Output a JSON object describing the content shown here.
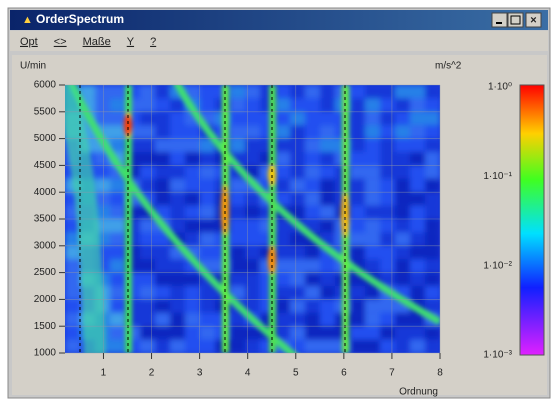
{
  "window": {
    "title": "OrderSpectrum",
    "menu": [
      "Opt",
      "<>",
      "Maße",
      "Y",
      "?"
    ]
  },
  "chart_data": {
    "type": "heatmap",
    "y_label": "U/min",
    "x_label": "Ordnung",
    "unit_label": "m/s^2",
    "xlim": [
      0.2,
      8
    ],
    "xticks": [
      1,
      2,
      3,
      4,
      5,
      6,
      7,
      8
    ],
    "ylim": [
      1000,
      6000
    ],
    "yticks": [
      1000,
      1500,
      2000,
      2500,
      3000,
      3500,
      4000,
      4500,
      5000,
      5500,
      6000
    ],
    "colorbar_labels": [
      "1·10⁰",
      "1·10⁻¹",
      "1·10⁻²",
      "1·10⁻³"
    ],
    "grid": true
  }
}
